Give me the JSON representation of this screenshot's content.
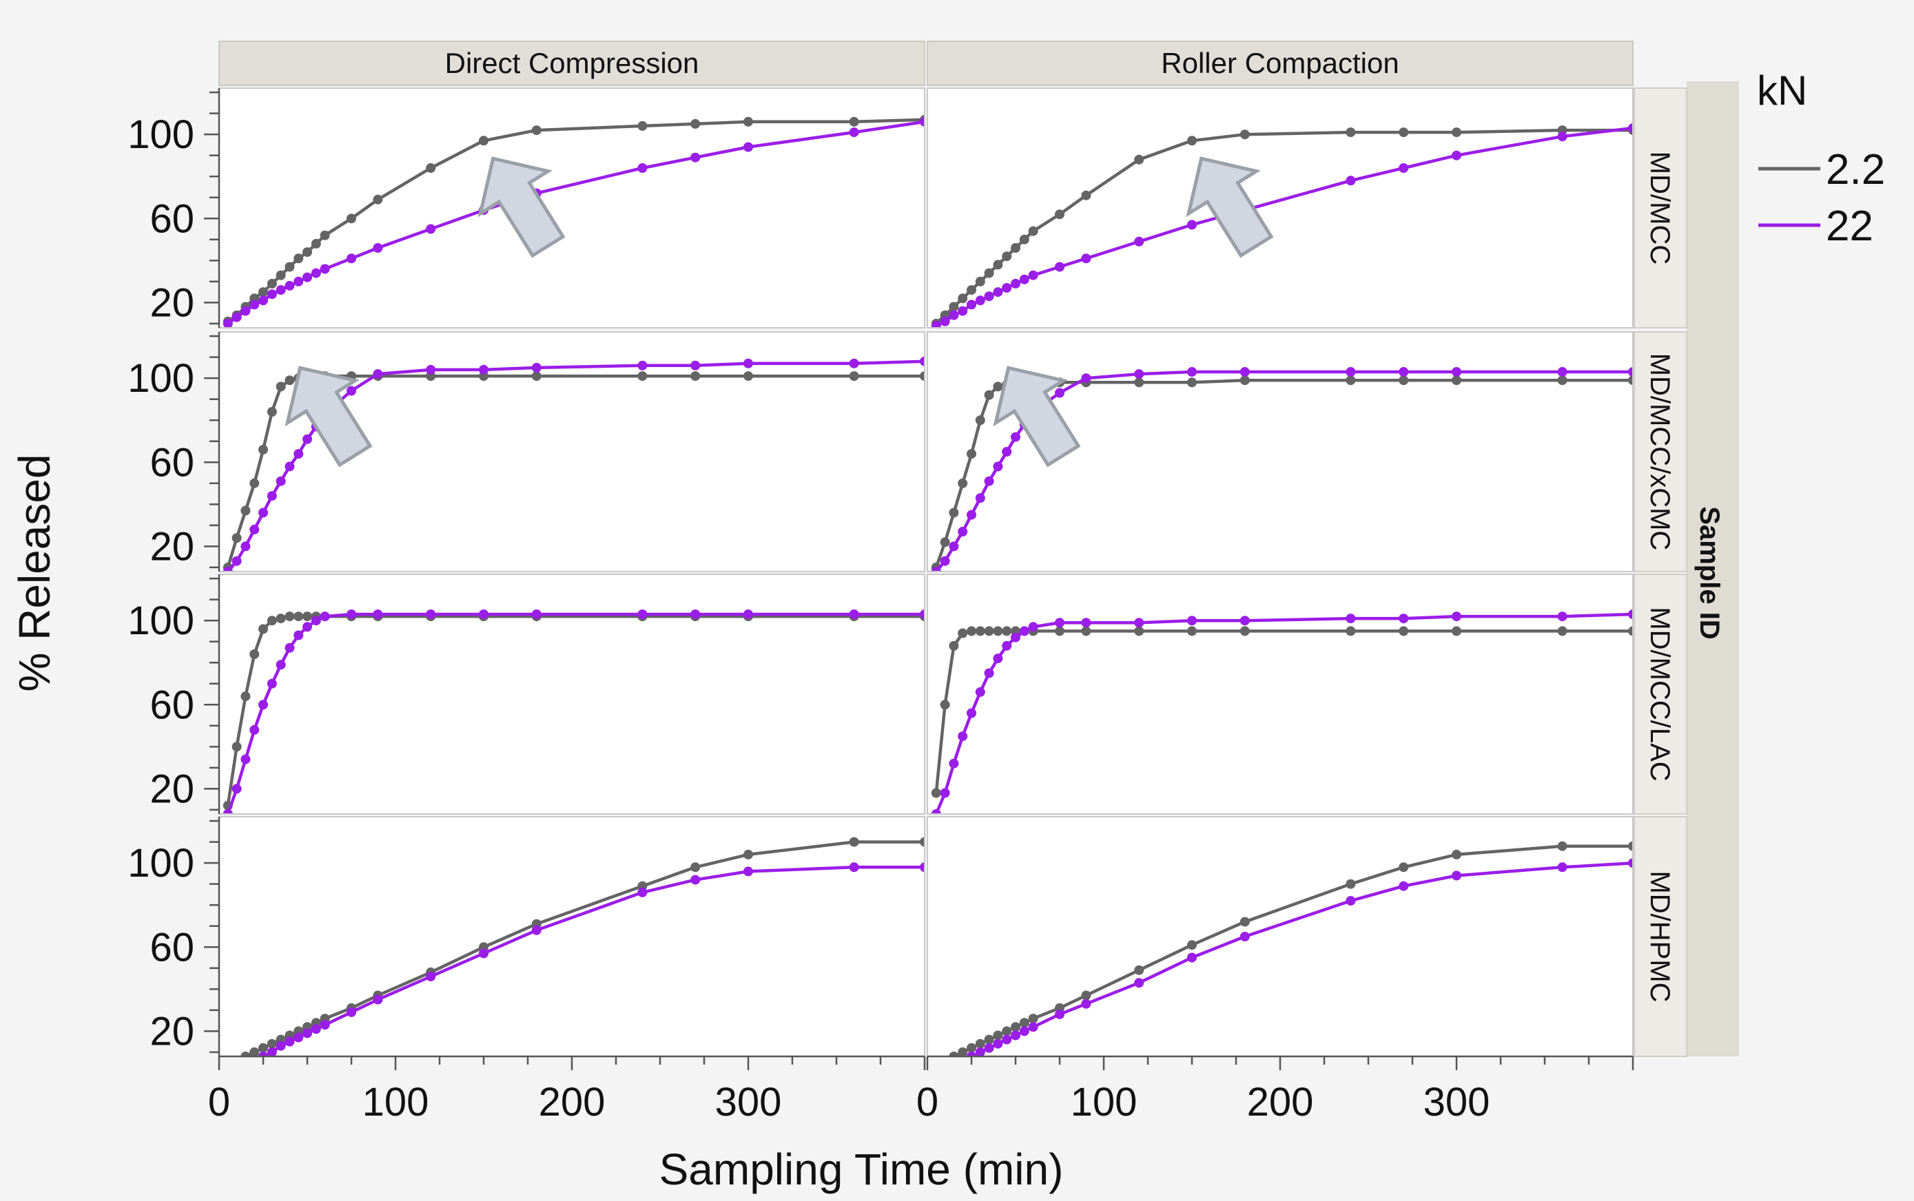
{
  "chart_data": {
    "type": "line",
    "title": "",
    "xlabel": "Sampling Time (min)",
    "ylabel": "% Released",
    "xlim": [
      0,
      400
    ],
    "ylim": [
      8,
      122
    ],
    "x_ticks": [
      0,
      100,
      200,
      300
    ],
    "y_ticks": [
      20,
      60,
      100
    ],
    "column_facet_labels": [
      "Direct Compression",
      "Roller Compaction"
    ],
    "row_group_title": "Sample ID",
    "row_facet_labels": [
      "MD/MCC",
      "MD/MCC/xCMC",
      "MD/MCC/LAC",
      "MD/HPMC"
    ],
    "legend": {
      "title": "kN",
      "position": "right",
      "entries": [
        {
          "name": "2.2",
          "color": "#646464"
        },
        {
          "name": "22",
          "color": "#9b1de8"
        }
      ]
    },
    "panels": [
      {
        "row": "MD/MCC",
        "column": "Direct Compression",
        "arrow": true,
        "series": [
          {
            "name": "2.2",
            "x": [
              5,
              10,
              15,
              20,
              25,
              30,
              35,
              40,
              45,
              50,
              55,
              60,
              75,
              90,
              120,
              150,
              180,
              240,
              270,
              300,
              360,
              400
            ],
            "y": [
              11,
              14,
              18,
              22,
              25,
              29,
              33,
              37,
              41,
              44,
              48,
              52,
              60,
              69,
              84,
              97,
              102,
              104,
              105,
              106,
              106,
              107
            ]
          },
          {
            "name": "22",
            "x": [
              5,
              10,
              15,
              20,
              25,
              30,
              35,
              40,
              45,
              50,
              55,
              60,
              75,
              90,
              120,
              150,
              180,
              240,
              270,
              300,
              360,
              400
            ],
            "y": [
              10,
              13,
              16,
              19,
              21,
              24,
              26,
              28,
              30,
              32,
              34,
              36,
              41,
              46,
              55,
              64,
              72,
              84,
              89,
              94,
              101,
              106
            ]
          }
        ]
      },
      {
        "row": "MD/MCC",
        "column": "Roller Compaction",
        "arrow": true,
        "series": [
          {
            "name": "2.2",
            "x": [
              5,
              10,
              15,
              20,
              25,
              30,
              35,
              40,
              45,
              50,
              55,
              60,
              75,
              90,
              120,
              150,
              180,
              240,
              270,
              300,
              360,
              400
            ],
            "y": [
              10,
              14,
              18,
              22,
              26,
              30,
              34,
              38,
              42,
              46,
              50,
              54,
              62,
              71,
              88,
              97,
              100,
              101,
              101,
              101,
              102,
              102
            ]
          },
          {
            "name": "22",
            "x": [
              5,
              10,
              15,
              20,
              25,
              30,
              35,
              40,
              45,
              50,
              55,
              60,
              75,
              90,
              120,
              150,
              180,
              240,
              270,
              300,
              360,
              400
            ],
            "y": [
              9,
              11,
              14,
              16,
              19,
              21,
              23,
              25,
              27,
              29,
              31,
              33,
              37,
              41,
              49,
              57,
              64,
              78,
              84,
              90,
              99,
              103
            ]
          }
        ]
      },
      {
        "row": "MD/MCC/xCMC",
        "column": "Direct Compression",
        "arrow": true,
        "series": [
          {
            "name": "2.2",
            "x": [
              5,
              10,
              15,
              20,
              25,
              30,
              35,
              40,
              45,
              50,
              55,
              60,
              75,
              90,
              120,
              150,
              180,
              240,
              270,
              300,
              360,
              400
            ],
            "y": [
              10,
              24,
              37,
              50,
              66,
              84,
              96,
              99,
              100,
              101,
              101,
              101,
              101,
              101,
              101,
              101,
              101,
              101,
              101,
              101,
              101,
              101
            ]
          },
          {
            "name": "22",
            "x": [
              5,
              10,
              15,
              20,
              25,
              30,
              35,
              40,
              45,
              50,
              55,
              60,
              75,
              90,
              120,
              150,
              180,
              240,
              270,
              300,
              360,
              400
            ],
            "y": [
              8,
              13,
              20,
              28,
              36,
              44,
              51,
              58,
              64,
              71,
              77,
              83,
              94,
              102,
              104,
              104,
              105,
              106,
              106,
              107,
              107,
              108
            ]
          }
        ]
      },
      {
        "row": "MD/MCC/xCMC",
        "column": "Roller Compaction",
        "arrow": true,
        "series": [
          {
            "name": "2.2",
            "x": [
              5,
              10,
              15,
              20,
              25,
              30,
              35,
              40,
              45,
              50,
              55,
              60,
              75,
              90,
              120,
              150,
              180,
              240,
              270,
              300,
              360,
              400
            ],
            "y": [
              10,
              22,
              36,
              50,
              64,
              80,
              92,
              96,
              97,
              97,
              98,
              98,
              98,
              98,
              98,
              98,
              99,
              99,
              99,
              99,
              99,
              99
            ]
          },
          {
            "name": "22",
            "x": [
              5,
              10,
              15,
              20,
              25,
              30,
              35,
              40,
              45,
              50,
              55,
              60,
              75,
              90,
              120,
              150,
              180,
              240,
              270,
              300,
              360,
              400
            ],
            "y": [
              8,
              13,
              20,
              27,
              35,
              43,
              51,
              58,
              65,
              72,
              78,
              84,
              93,
              100,
              102,
              103,
              103,
              103,
              103,
              103,
              103,
              103
            ]
          }
        ]
      },
      {
        "row": "MD/MCC/LAC",
        "column": "Direct Compression",
        "arrow": false,
        "series": [
          {
            "name": "2.2",
            "x": [
              5,
              10,
              15,
              20,
              25,
              30,
              35,
              40,
              45,
              50,
              55,
              60,
              75,
              90,
              120,
              150,
              180,
              240,
              270,
              300,
              360,
              400
            ],
            "y": [
              12,
              40,
              64,
              84,
              96,
              100,
              101,
              102,
              102,
              102,
              102,
              102,
              102,
              102,
              102,
              102,
              102,
              102,
              102,
              102,
              102,
              102
            ]
          },
          {
            "name": "22",
            "x": [
              5,
              10,
              15,
              20,
              25,
              30,
              35,
              40,
              45,
              50,
              55,
              60,
              75,
              90,
              120,
              150,
              180,
              240,
              270,
              300,
              360,
              400
            ],
            "y": [
              8,
              20,
              34,
              48,
              60,
              70,
              79,
              87,
              93,
              97,
              100,
              102,
              103,
              103,
              103,
              103,
              103,
              103,
              103,
              103,
              103,
              103
            ]
          }
        ]
      },
      {
        "row": "MD/MCC/LAC",
        "column": "Roller Compaction",
        "arrow": false,
        "series": [
          {
            "name": "2.2",
            "x": [
              5,
              10,
              15,
              20,
              25,
              30,
              35,
              40,
              45,
              50,
              55,
              60,
              75,
              90,
              120,
              150,
              180,
              240,
              270,
              300,
              360,
              400
            ],
            "y": [
              18,
              60,
              88,
              94,
              95,
              95,
              95,
              95,
              95,
              95,
              95,
              95,
              95,
              95,
              95,
              95,
              95,
              95,
              95,
              95,
              95,
              95
            ]
          },
          {
            "name": "22",
            "x": [
              5,
              10,
              15,
              20,
              25,
              30,
              35,
              40,
              45,
              50,
              55,
              60,
              75,
              90,
              120,
              150,
              180,
              240,
              270,
              300,
              360,
              400
            ],
            "y": [
              8,
              18,
              32,
              45,
              56,
              66,
              75,
              82,
              88,
              92,
              95,
              97,
              99,
              99,
              99,
              100,
              100,
              101,
              101,
              102,
              102,
              103
            ]
          }
        ]
      },
      {
        "row": "MD/HPMC",
        "column": "Direct Compression",
        "arrow": false,
        "series": [
          {
            "name": "2.2",
            "x": [
              15,
              20,
              25,
              30,
              35,
              40,
              45,
              50,
              55,
              60,
              75,
              90,
              120,
              150,
              180,
              240,
              270,
              300,
              360,
              400
            ],
            "y": [
              8,
              10,
              12,
              14,
              16,
              18,
              20,
              22,
              24,
              26,
              31,
              37,
              48,
              60,
              71,
              89,
              98,
              104,
              110,
              110
            ]
          },
          {
            "name": "22",
            "x": [
              20,
              25,
              30,
              35,
              40,
              45,
              50,
              55,
              60,
              75,
              90,
              120,
              150,
              180,
              240,
              270,
              300,
              360,
              400
            ],
            "y": [
              6,
              8,
              10,
              13,
              15,
              17,
              19,
              21,
              23,
              29,
              35,
              46,
              57,
              68,
              86,
              92,
              96,
              98,
              98
            ]
          }
        ]
      },
      {
        "row": "MD/HPMC",
        "column": "Roller Compaction",
        "arrow": false,
        "series": [
          {
            "name": "2.2",
            "x": [
              15,
              20,
              25,
              30,
              35,
              40,
              45,
              50,
              55,
              60,
              75,
              90,
              120,
              150,
              180,
              240,
              270,
              300,
              360,
              400
            ],
            "y": [
              8,
              10,
              12,
              14,
              16,
              18,
              20,
              22,
              24,
              26,
              31,
              37,
              49,
              61,
              72,
              90,
              98,
              104,
              108,
              108
            ]
          },
          {
            "name": "22",
            "x": [
              20,
              25,
              30,
              35,
              40,
              45,
              50,
              55,
              60,
              75,
              90,
              120,
              150,
              180,
              240,
              270,
              300,
              360,
              400
            ],
            "y": [
              6,
              8,
              10,
              12,
              14,
              16,
              18,
              20,
              22,
              28,
              33,
              43,
              55,
              65,
              82,
              89,
              94,
              98,
              100
            ]
          }
        ]
      }
    ]
  }
}
